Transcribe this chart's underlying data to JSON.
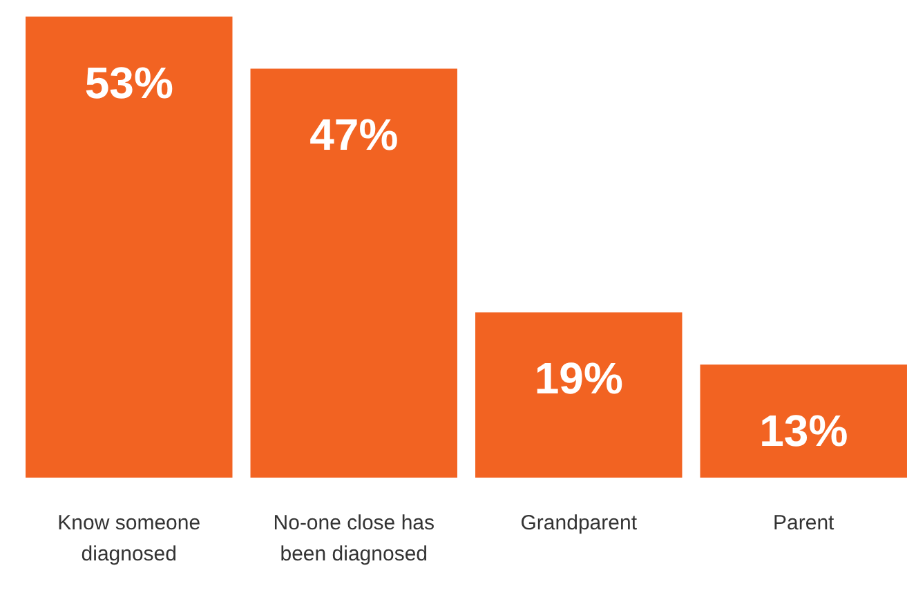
{
  "chart_data": {
    "type": "bar",
    "categories": [
      "Know someone diagnosed",
      "No-one close has been diagnosed",
      "Grandparent",
      "Parent"
    ],
    "values": [
      53,
      47,
      19,
      13
    ],
    "value_labels": [
      "53%",
      "47%",
      "19%",
      "13%"
    ],
    "color": "#f26322",
    "ylim": [
      0,
      53
    ],
    "grid": false,
    "legend": false
  }
}
